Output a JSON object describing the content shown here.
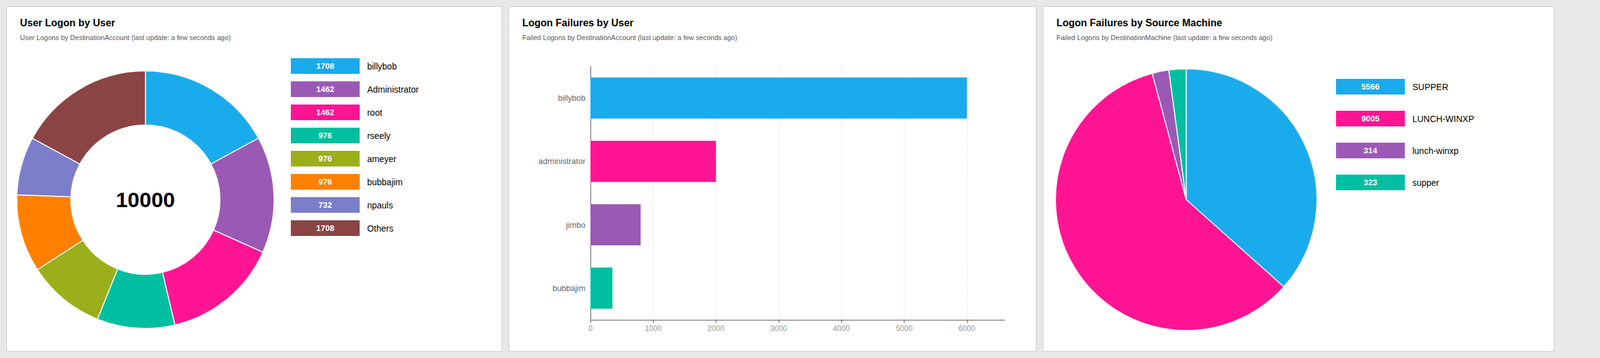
{
  "chart_data": [
    {
      "type": "donut",
      "title": "User Logon by User",
      "subtitle": "User Logons by DestinationAccount (last update: a few seconds ago)",
      "annotations": [
        "10000"
      ],
      "categories": [
        "billybob",
        "Administrator",
        "root",
        "rseely",
        "ameyer",
        "bubbajim",
        "npauls",
        "Others"
      ],
      "values": [
        1708,
        1462,
        1462,
        976,
        976,
        976,
        732,
        1708
      ],
      "colors": [
        "#1AABEC",
        "#9B59B6",
        "#FF1493",
        "#00BFA0",
        "#9AAF19",
        "#FF8000",
        "#7B7EC8",
        "#8B4444"
      ],
      "legend": "right",
      "data_labels": true
    },
    {
      "type": "bar",
      "orientation": "horizontal",
      "title": "Logon Failures by User",
      "subtitle": "Failed Logons by DestinationAccount (last update: a few seconds ago)",
      "categories": [
        "billybob",
        "administrator",
        "jimbo",
        "bubbajim"
      ],
      "values": [
        6000,
        2000,
        800,
        350
      ],
      "colors": [
        "#1AABEC",
        "#FF1493",
        "#9B59B6",
        "#00BFA0"
      ],
      "xlim": [
        0,
        6600
      ],
      "xticks": [
        0,
        1000,
        2000,
        3000,
        4000,
        5000,
        6000
      ],
      "grid": true
    },
    {
      "type": "pie",
      "title": "Logon Failures by Source Machine",
      "subtitle": "Failed Logons by DestinationMachine (last update: a few seconds ago)",
      "categories": [
        "SUPPER",
        "LUNCH-WINXP",
        "lunch-winxp",
        "supper"
      ],
      "values": [
        5566,
        9005,
        314,
        323
      ],
      "colors": [
        "#1AABEC",
        "#FF1493",
        "#9B59B6",
        "#00BFA0"
      ],
      "legend": "right",
      "data_labels": true
    }
  ]
}
